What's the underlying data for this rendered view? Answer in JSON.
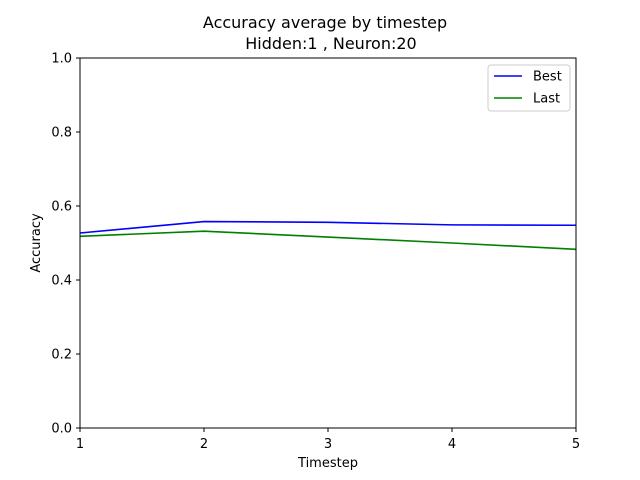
{
  "chart_data": {
    "type": "line",
    "title": "Accuracy average by timestep",
    "subtitle": "Hidden:1 , Neuron:20",
    "xlabel": "Timestep",
    "ylabel": "Accuracy",
    "x": [
      1,
      2,
      3,
      4,
      5
    ],
    "xlim": [
      1,
      5
    ],
    "ylim": [
      0,
      1.0
    ],
    "xticks": [
      "1",
      "2",
      "3",
      "4",
      "5"
    ],
    "yticks": [
      "0.0",
      "0.2",
      "0.4",
      "0.6",
      "0.8",
      "1.0"
    ],
    "grid": false,
    "legend_position": "top-right",
    "series": [
      {
        "name": "Best",
        "color": "#0000ff",
        "values": [
          0.527,
          0.558,
          0.556,
          0.549,
          0.548
        ]
      },
      {
        "name": "Last",
        "color": "#008000",
        "values": [
          0.518,
          0.532,
          0.516,
          0.5,
          0.483
        ]
      }
    ]
  }
}
